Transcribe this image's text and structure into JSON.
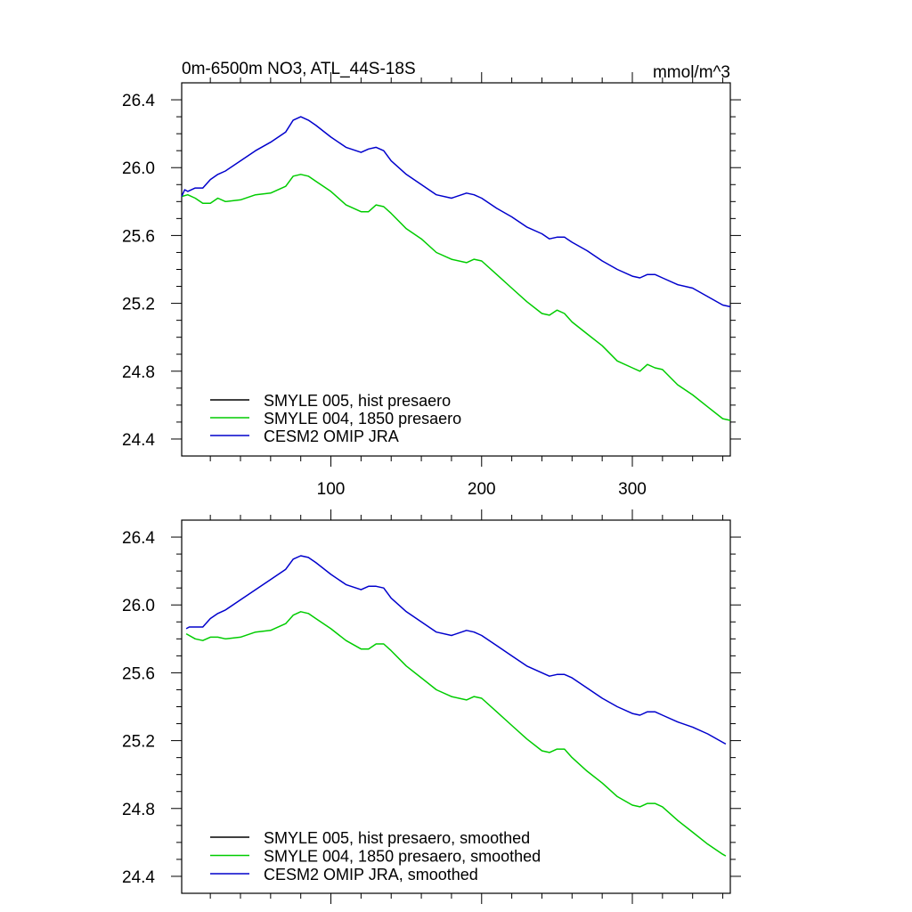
{
  "chart_data": [
    {
      "type": "line",
      "title": "0m-6500m NO3, ATL_44S-18S",
      "units": "mmol/m^3",
      "xlim": [
        1,
        365
      ],
      "ylim": [
        24.3,
        26.5
      ],
      "xticks": [
        100,
        200,
        300
      ],
      "xtick_labels": [
        "100",
        "200",
        "300"
      ],
      "yticks": [
        24.4,
        24.8,
        25.2,
        25.6,
        26.0,
        26.4
      ],
      "ytick_labels": [
        "24.4",
        "24.8",
        "25.2",
        "25.6",
        "26.0",
        "26.4"
      ],
      "grid": false,
      "legend_position": "bottom-left",
      "series": [
        {
          "name": "SMYLE 005, hist presaero",
          "color": "#000000",
          "x": [],
          "y": []
        },
        {
          "name": "SMYLE 004, 1850 presaero",
          "color": "#00cc00",
          "x": [
            1,
            5,
            10,
            15,
            20,
            25,
            30,
            40,
            50,
            60,
            70,
            75,
            80,
            85,
            90,
            100,
            110,
            120,
            125,
            130,
            135,
            140,
            150,
            160,
            170,
            180,
            190,
            195,
            200,
            210,
            220,
            230,
            240,
            245,
            250,
            255,
            260,
            270,
            280,
            290,
            300,
            305,
            310,
            315,
            320,
            330,
            340,
            350,
            360,
            365
          ],
          "y": [
            25.83,
            25.84,
            25.82,
            25.79,
            25.79,
            25.82,
            25.8,
            25.81,
            25.84,
            25.85,
            25.89,
            25.95,
            25.96,
            25.95,
            25.92,
            25.86,
            25.78,
            25.74,
            25.74,
            25.78,
            25.77,
            25.73,
            25.64,
            25.58,
            25.5,
            25.46,
            25.44,
            25.46,
            25.45,
            25.37,
            25.29,
            25.21,
            25.14,
            25.13,
            25.16,
            25.14,
            25.09,
            25.02,
            24.95,
            24.86,
            24.82,
            24.8,
            24.84,
            24.82,
            24.81,
            24.72,
            24.66,
            24.59,
            24.52,
            24.51
          ]
        },
        {
          "name": "CESM2 OMIP JRA",
          "color": "#0000cc",
          "x": [
            1,
            3,
            5,
            10,
            15,
            20,
            25,
            30,
            40,
            50,
            60,
            70,
            75,
            80,
            85,
            90,
            100,
            110,
            120,
            125,
            130,
            135,
            140,
            150,
            160,
            170,
            180,
            190,
            195,
            200,
            210,
            220,
            230,
            240,
            245,
            250,
            255,
            260,
            270,
            280,
            290,
            300,
            305,
            310,
            315,
            320,
            330,
            340,
            350,
            360,
            365
          ],
          "y": [
            25.83,
            25.87,
            25.86,
            25.88,
            25.88,
            25.93,
            25.96,
            25.98,
            26.04,
            26.1,
            26.15,
            26.21,
            26.28,
            26.3,
            26.28,
            26.25,
            26.18,
            26.12,
            26.09,
            26.11,
            26.12,
            26.1,
            26.04,
            25.96,
            25.9,
            25.84,
            25.82,
            25.85,
            25.84,
            25.82,
            25.76,
            25.71,
            25.65,
            25.61,
            25.58,
            25.59,
            25.59,
            25.56,
            25.51,
            25.45,
            25.4,
            25.36,
            25.35,
            25.37,
            25.37,
            25.35,
            25.31,
            25.29,
            25.24,
            25.19,
            25.18
          ]
        }
      ]
    },
    {
      "type": "line",
      "xlim": [
        1,
        365
      ],
      "ylim": [
        24.3,
        26.5
      ],
      "xticks": [
        100,
        200,
        300
      ],
      "yticks": [
        24.4,
        24.8,
        25.2,
        25.6,
        26.0,
        26.4
      ],
      "ytick_labels": [
        "24.4",
        "24.8",
        "25.2",
        "25.6",
        "26.0",
        "26.4"
      ],
      "grid": false,
      "legend_position": "bottom-left",
      "series": [
        {
          "name": "SMYLE 005, hist presaero, smoothed",
          "color": "#000000",
          "x": [],
          "y": []
        },
        {
          "name": "SMYLE 004, 1850 presaero, smoothed",
          "color": "#00cc00",
          "x": [
            4,
            10,
            15,
            20,
            25,
            30,
            40,
            50,
            60,
            70,
            75,
            80,
            85,
            90,
            100,
            110,
            120,
            125,
            130,
            135,
            140,
            150,
            160,
            170,
            180,
            190,
            195,
            200,
            210,
            220,
            230,
            240,
            245,
            250,
            255,
            260,
            270,
            280,
            290,
            300,
            305,
            310,
            315,
            320,
            330,
            340,
            350,
            360,
            362
          ],
          "y": [
            25.83,
            25.8,
            25.79,
            25.81,
            25.81,
            25.8,
            25.81,
            25.84,
            25.85,
            25.89,
            25.94,
            25.96,
            25.95,
            25.92,
            25.86,
            25.79,
            25.74,
            25.74,
            25.77,
            25.77,
            25.73,
            25.64,
            25.57,
            25.5,
            25.46,
            25.44,
            25.46,
            25.45,
            25.37,
            25.29,
            25.21,
            25.14,
            25.13,
            25.15,
            25.15,
            25.1,
            25.02,
            24.95,
            24.87,
            24.82,
            24.81,
            24.83,
            24.83,
            24.81,
            24.73,
            24.66,
            24.59,
            24.53,
            24.52
          ]
        },
        {
          "name": "CESM2 OMIP JRA, smoothed",
          "color": "#0000cc",
          "x": [
            4,
            6,
            10,
            15,
            20,
            25,
            30,
            40,
            50,
            60,
            70,
            75,
            80,
            85,
            90,
            100,
            110,
            120,
            125,
            130,
            135,
            140,
            150,
            160,
            170,
            180,
            190,
            195,
            200,
            210,
            220,
            230,
            240,
            245,
            250,
            255,
            260,
            270,
            280,
            290,
            300,
            305,
            310,
            315,
            320,
            330,
            340,
            350,
            360,
            362
          ],
          "y": [
            25.86,
            25.87,
            25.87,
            25.87,
            25.92,
            25.95,
            25.97,
            26.03,
            26.09,
            26.15,
            26.21,
            26.27,
            26.29,
            26.28,
            26.25,
            26.18,
            26.12,
            26.09,
            26.11,
            26.11,
            26.1,
            26.04,
            25.96,
            25.9,
            25.84,
            25.82,
            25.85,
            25.84,
            25.82,
            25.76,
            25.7,
            25.64,
            25.6,
            25.58,
            25.59,
            25.59,
            25.57,
            25.51,
            25.45,
            25.4,
            25.36,
            25.35,
            25.37,
            25.37,
            25.35,
            25.31,
            25.28,
            25.24,
            25.19,
            25.18
          ]
        }
      ]
    }
  ]
}
